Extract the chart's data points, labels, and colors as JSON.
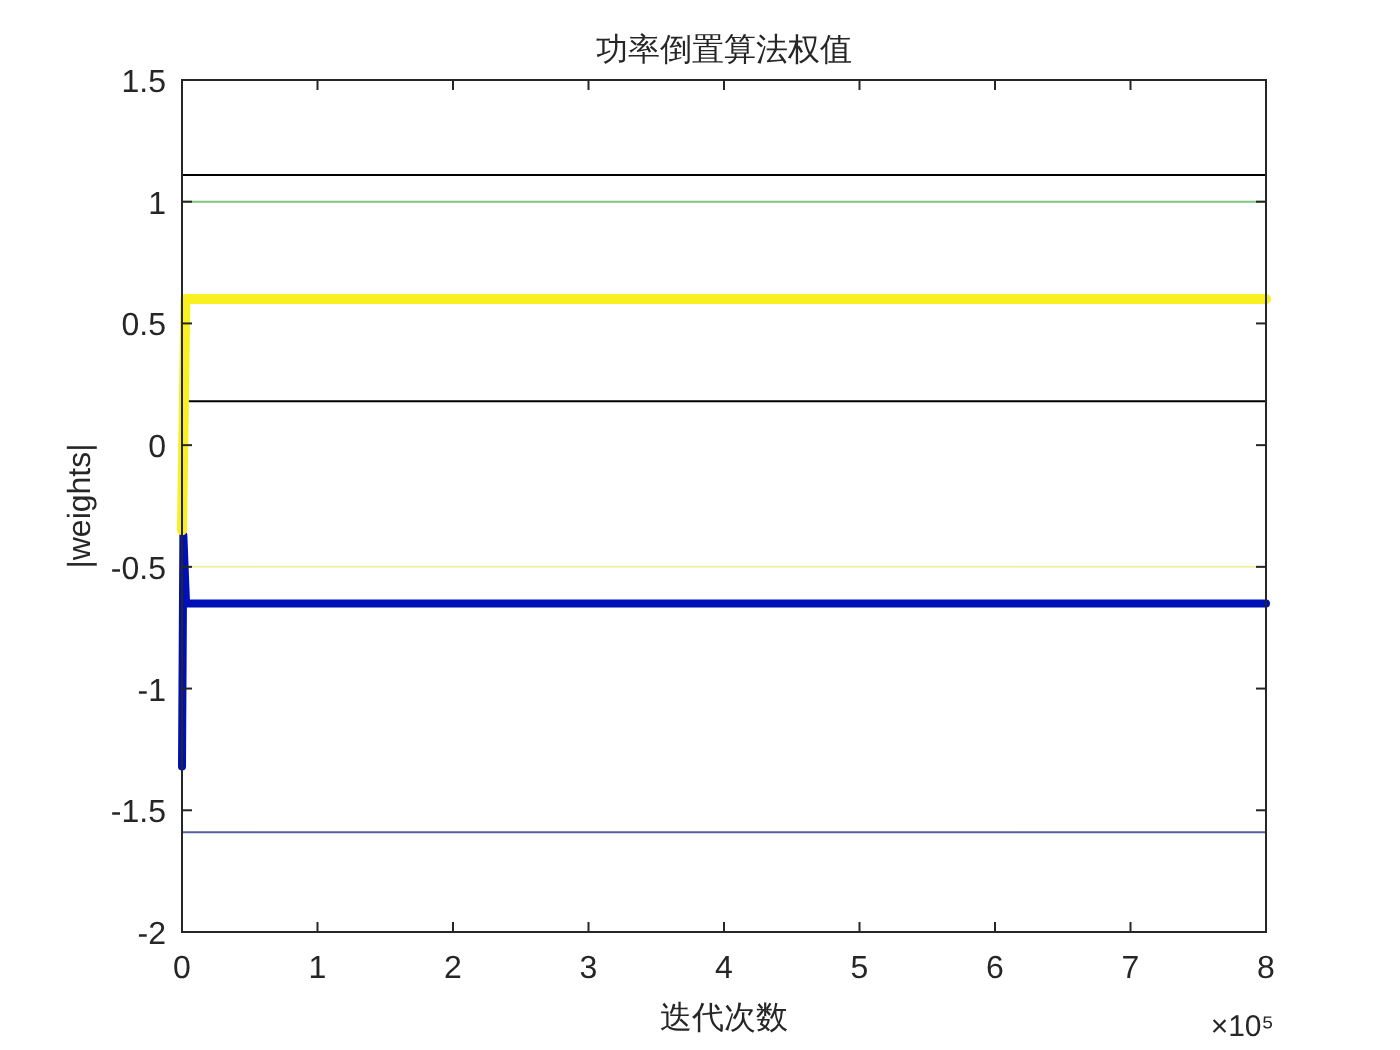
{
  "chart_data": {
    "type": "line",
    "title": "功率倒置算法权值",
    "xlabel": "迭代次数",
    "ylabel": "|weights|",
    "annotations": [
      "×10⁵"
    ],
    "xlim": [
      0,
      8
    ],
    "xticks": [
      0,
      1,
      2,
      3,
      4,
      5,
      6,
      7,
      8
    ],
    "ylim": [
      -2,
      1.5
    ],
    "yticks": [
      -2,
      -1.5,
      -1,
      -0.5,
      0,
      0.5,
      1,
      1.5
    ],
    "grid": false,
    "marker": "none",
    "line_style": "solid",
    "series": [
      {
        "color": "#000000",
        "x": [
          0,
          8
        ],
        "values": [
          1.11,
          1.11
        ]
      },
      {
        "color": "#7cc87c",
        "x": [
          0,
          8
        ],
        "values": [
          1.0,
          1.0
        ]
      },
      {
        "color": "#000000",
        "x": [
          0,
          8
        ],
        "values": [
          0.18,
          0.18
        ]
      },
      {
        "color": "#f4f0a8",
        "x": [
          0,
          8
        ],
        "values": [
          -0.5,
          -0.5
        ]
      },
      {
        "color": "#56609a",
        "x": [
          0,
          8
        ],
        "values": [
          -1.59,
          -1.59
        ]
      },
      {
        "color": "#0010b8",
        "x": [
          0,
          0.01,
          0.03,
          8
        ],
        "values": [
          -1.32,
          -0.37,
          -0.65,
          -0.65
        ]
      },
      {
        "color": "#f8f020",
        "x": [
          0,
          0.025,
          8
        ],
        "values": [
          -0.35,
          0.6,
          0.6
        ]
      }
    ]
  }
}
